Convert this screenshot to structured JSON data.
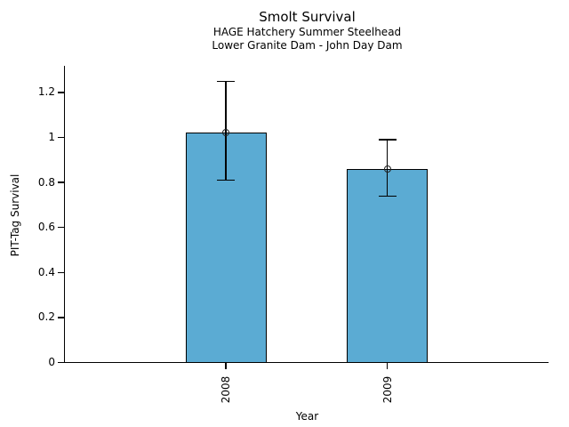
{
  "chart_data": {
    "type": "bar",
    "title": "Smolt Survival",
    "subtitle_line1": "HAGE Hatchery Summer Steelhead",
    "subtitle_line2": "Lower Granite Dam - John Day Dam",
    "xlabel": "Year",
    "ylabel": "PIT-Tag Survival",
    "categories": [
      "2008",
      "2009"
    ],
    "values": [
      1.02,
      0.86
    ],
    "error_low": [
      0.81,
      0.74
    ],
    "error_high": [
      1.25,
      0.99
    ],
    "ylim": [
      0,
      1.3
    ],
    "ytick_values": [
      0,
      0.2,
      0.4,
      0.6,
      0.8,
      1,
      1.2
    ],
    "ytick_labels": [
      "0",
      "0.2",
      "0.4",
      "0.6",
      "0.8",
      "1",
      "1.2"
    ],
    "x_tick_label_rotation": 90,
    "bar_color": "#5BABD3",
    "bar_edge_color": "#000000",
    "error_bar_color": "#000000",
    "point_marker": "open-circle",
    "grid": false,
    "legend": false
  }
}
